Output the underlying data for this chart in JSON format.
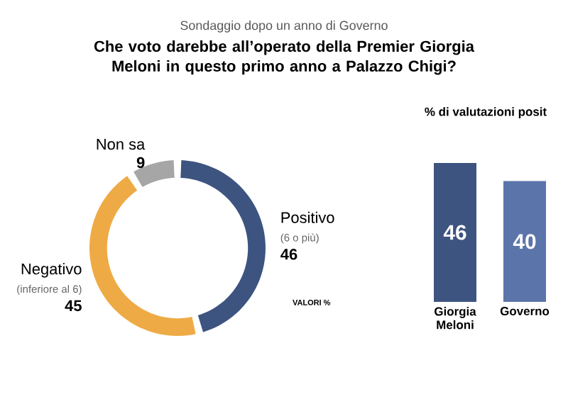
{
  "chart_data": [
    {
      "type": "donut",
      "subtitle": "Sondaggio dopo un anno di Governo",
      "title": "Che voto darebbe all’operato della Premier Giorgia Meloni in questo primo anno a Palazzo Chigi?",
      "categories": [
        "Positivo",
        "Negativo",
        "Non sa"
      ],
      "values": [
        46,
        45,
        9
      ],
      "colors": [
        "#3d5480",
        "#eeab45",
        "#a6a6a6"
      ],
      "data_labels": true,
      "annotations": [
        {
          "text": "(6 o più)",
          "x": "Positivo"
        },
        {
          "text": "(inferiore al 6)",
          "x": "Negativo"
        },
        "VALORI %"
      ]
    },
    {
      "type": "bar",
      "title": "% di valutazioni posit",
      "categories": [
        "Giorgia Meloni",
        "Governo"
      ],
      "values": [
        46,
        40
      ],
      "colors": [
        "#3d5480",
        "#5b74aa"
      ],
      "data_labels": true
    }
  ]
}
